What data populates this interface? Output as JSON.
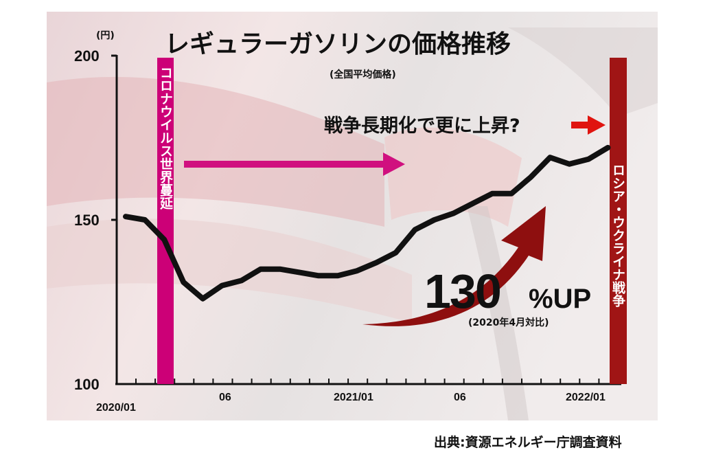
{
  "chart_data": {
    "type": "line",
    "title": "レギュラーガソリンの価格推移",
    "subtitle": "(全国平均価格)",
    "y_unit": "(円)",
    "ylim": [
      100,
      200
    ],
    "y_ticks": [
      "200",
      "150",
      "100"
    ],
    "x_tick_labels": [
      "2020/01",
      "06",
      "2021/01",
      "06",
      "2022/01"
    ],
    "grid": false,
    "x": [
      "2020/01",
      "2020/02",
      "2020/03",
      "2020/04",
      "2020/05",
      "2020/06",
      "2020/07",
      "2020/08",
      "2020/09",
      "2020/10",
      "2020/11",
      "2020/12",
      "2021/01",
      "2021/02",
      "2021/03",
      "2021/04",
      "2021/05",
      "2021/06",
      "2021/07",
      "2021/08",
      "2021/09",
      "2021/10",
      "2021/11",
      "2021/12",
      "2022/01",
      "2022/02"
    ],
    "series": [
      {
        "color": "#111111",
        "values": [
          151,
          150,
          144,
          131,
          126,
          130,
          131.5,
          135,
          135,
          134,
          133,
          133,
          134.5,
          137,
          140,
          147,
          150,
          152,
          155,
          158,
          158,
          163,
          169,
          167,
          168.5,
          172
        ]
      }
    ],
    "annotations": {
      "covid_label": "コロナウイルス世界蔓延",
      "war_label": "ロシア・ウクライナ戦争",
      "forecast_text": "戦争長期化で更に上昇?",
      "increase_value": "130",
      "increase_unit": "%UP",
      "increase_note": "(2020年4月対比)"
    },
    "colors": {
      "covid_band": "#cc0077",
      "war_band": "#a01515",
      "arrow_red": "#e0140f",
      "big_arrow": "#8e0f0f"
    }
  },
  "source": "出典:資源エネルギー庁調査資料"
}
